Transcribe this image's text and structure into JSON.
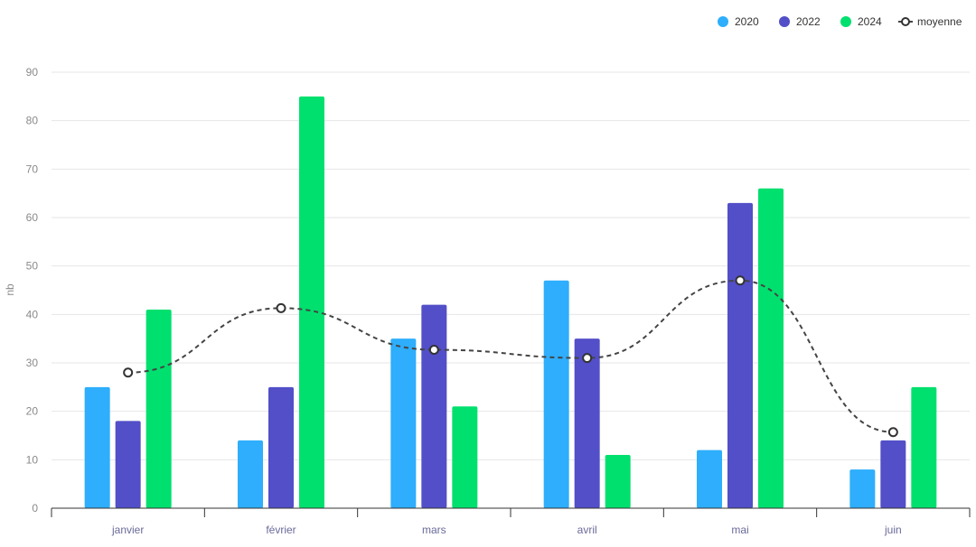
{
  "chart_data": {
    "type": "bar",
    "categories": [
      "janvier",
      "février",
      "mars",
      "avril",
      "mai",
      "juin"
    ],
    "series": [
      {
        "name": "2020",
        "color": "#2eaefc",
        "values": [
          25,
          14,
          35,
          47,
          12,
          8
        ]
      },
      {
        "name": "2022",
        "color": "#524fc8",
        "values": [
          18,
          25,
          42,
          35,
          63,
          14
        ]
      },
      {
        "name": "2024",
        "color": "#00e06e",
        "values": [
          41,
          85,
          21,
          11,
          66,
          25
        ]
      }
    ],
    "line_series": {
      "name": "moyenne",
      "type": "line",
      "style": "dashed-smooth",
      "color": "#444444",
      "values": [
        28.0,
        41.3,
        32.7,
        31.0,
        47.0,
        15.7
      ]
    },
    "title": "",
    "xlabel": "",
    "ylabel": "nb",
    "ylim": [
      0,
      90
    ],
    "yticks": [
      0,
      10,
      20,
      30,
      40,
      50,
      60,
      70,
      80,
      90
    ],
    "grid": true,
    "legend_position": "top-right"
  }
}
